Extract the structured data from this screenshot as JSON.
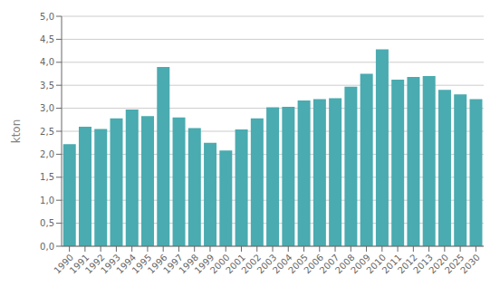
{
  "chart_data": {
    "type": "bar",
    "categories": [
      "1990",
      "1991",
      "1992",
      "1993",
      "1994",
      "1995",
      "1996",
      "1997",
      "1998",
      "1999",
      "2000",
      "2001",
      "2002",
      "2003",
      "2004",
      "2005",
      "2006",
      "2007",
      "2008",
      "2009",
      "2010",
      "2011",
      "2012",
      "2013",
      "2020",
      "2025",
      "2030"
    ],
    "values": [
      2.22,
      2.6,
      2.55,
      2.78,
      2.97,
      2.83,
      3.9,
      2.8,
      2.57,
      2.25,
      2.08,
      2.54,
      2.78,
      3.02,
      3.03,
      3.17,
      3.2,
      3.22,
      3.47,
      3.75,
      4.28,
      3.62,
      3.68,
      3.7,
      3.4,
      3.3,
      3.2
    ],
    "color": "#4AABB0",
    "ylabel": "kton",
    "ylim": [
      0,
      5.0
    ],
    "yticks": [
      {
        "value": 0.0,
        "label": "0,0"
      },
      {
        "value": 0.5,
        "label": "0,5"
      },
      {
        "value": 1.0,
        "label": "1,0"
      },
      {
        "value": 1.5,
        "label": "1,5"
      },
      {
        "value": 2.0,
        "label": "2,0"
      },
      {
        "value": 2.5,
        "label": "2,5"
      },
      {
        "value": 3.0,
        "label": "3,0"
      },
      {
        "value": 3.5,
        "label": "3,5"
      },
      {
        "value": 4.0,
        "label": "4,0"
      },
      {
        "value": 4.5,
        "label": "4,5"
      },
      {
        "value": 5.0,
        "label": "5,0"
      }
    ],
    "grid": true
  }
}
